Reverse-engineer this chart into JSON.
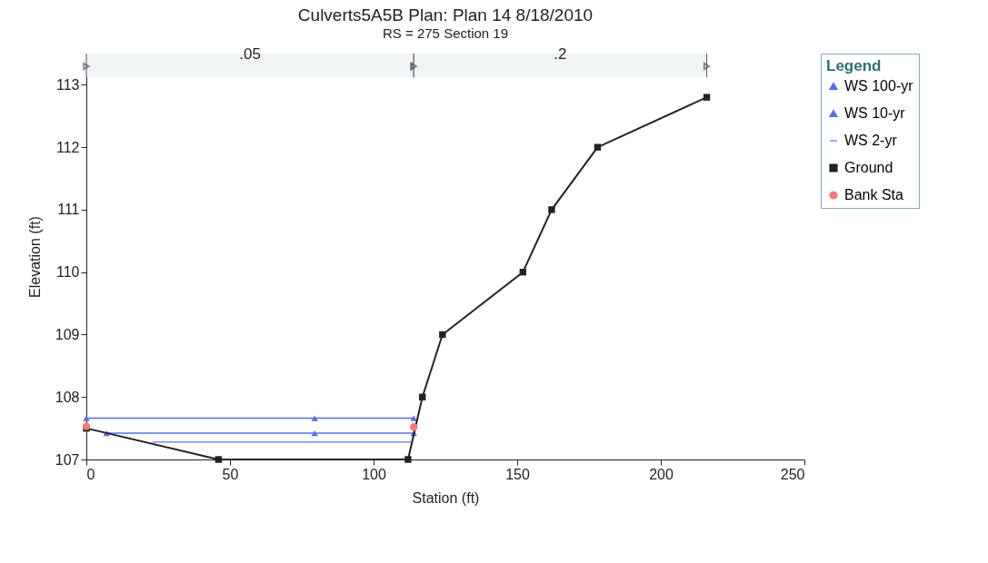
{
  "chart_data": {
    "type": "line",
    "title": "Culverts5A5B       Plan: Plan 14       8/18/2010",
    "subtitle": "RS = 275  Section 19",
    "xlabel": "Station (ft)",
    "ylabel": "Elevation (ft)",
    "legend_title": "Legend",
    "xlim": [
      0,
      250
    ],
    "xticks": [
      0,
      50,
      100,
      150,
      200,
      250
    ],
    "ylim": [
      107,
      113.5
    ],
    "yticks": [
      107,
      108,
      109,
      110,
      111,
      112,
      113
    ],
    "grid": false,
    "legend": "right",
    "bands": [
      {
        "axis": "x",
        "from": 0,
        "to": 114,
        "label": ".05",
        "color": "#f2f5f5"
      },
      {
        "axis": "x",
        "from": 114,
        "to": 216,
        "label": ".2",
        "color": "#f2f5f5"
      }
    ],
    "series": [
      {
        "name": "WS 100-yr",
        "color": "#5a6ee0",
        "marker": "triangle",
        "x": [
          0,
          79.5,
          114
        ],
        "values": [
          107.66,
          107.66,
          107.66
        ]
      },
      {
        "name": "WS 10-yr",
        "color": "#5a6ee0",
        "marker": "triangle",
        "x": [
          7,
          79.5,
          114
        ],
        "values": [
          107.42,
          107.42,
          107.42
        ]
      },
      {
        "name": "WS 2-yr",
        "color": "#7a8ae8",
        "marker": "none",
        "x": [
          23,
          113
        ],
        "values": [
          107.28,
          107.28
        ]
      },
      {
        "name": "Ground",
        "color": "#222222",
        "marker": "square",
        "x": [
          0,
          46,
          112,
          117,
          124,
          152,
          162,
          178,
          216
        ],
        "values": [
          107.5,
          107,
          107,
          108,
          109,
          110,
          111,
          112,
          112.8
        ]
      },
      {
        "name": "Bank Sta",
        "type": "scatter",
        "color": "#f47a7a",
        "marker": "circle",
        "x": [
          0,
          114
        ],
        "values": [
          107.53,
          107.52
        ]
      }
    ]
  }
}
